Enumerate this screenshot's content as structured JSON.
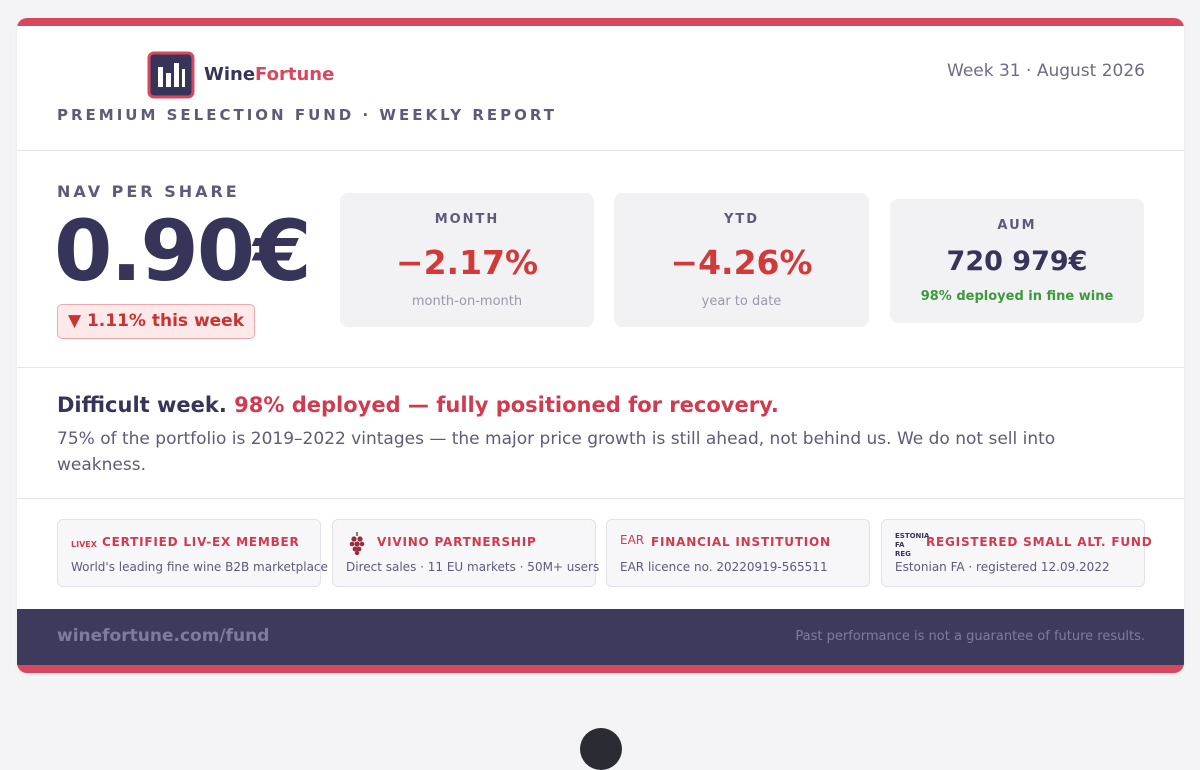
{
  "header": {
    "brand_first": "Wine",
    "brand_second": "Fortune",
    "subtitle": "PREMIUM SELECTION FUND · WEEKLY REPORT",
    "period": "Week 31 · August 2026"
  },
  "nav": {
    "label": "NAV PER SHARE",
    "value": "0.90€",
    "change": "▼ 1.11% this week"
  },
  "metrics": [
    {
      "label": "MONTH",
      "value": "−2.17%",
      "note": "month-on-month"
    },
    {
      "label": "YTD",
      "value": "−4.26%",
      "note": "year to date"
    },
    {
      "label": "AUM",
      "value": "720 979€",
      "note": "98% deployed in fine wine"
    }
  ],
  "message": {
    "lead": "Difficult week.",
    "highlight": "98% deployed — fully positioned for recovery.",
    "body": "75% of the portfolio is 2019–2022 vintages — the major price growth is still ahead, not behind us. We do not sell into weakness."
  },
  "credentials": [
    {
      "logo": "LIVEX",
      "title": "CERTIFIED LIV-EX MEMBER",
      "detail": "World's leading fine wine B2B marketplace"
    },
    {
      "title": "VIVINO PARTNERSHIP",
      "detail": "Direct sales · 11 EU markets · 50M+ users"
    },
    {
      "logo": "EAR",
      "title": "FINANCIAL INSTITUTION",
      "detail": "EAR licence no. 20220919-565511"
    },
    {
      "logo": "ESTONIA FA REG",
      "title": "REGISTERED SMALL ALT. FUND",
      "detail": "Estonian FA · registered 12.09.2022"
    }
  ],
  "footer": {
    "url": "winefortune.com/fund",
    "disclaimer": "Past performance is not a guarantee of future results."
  }
}
